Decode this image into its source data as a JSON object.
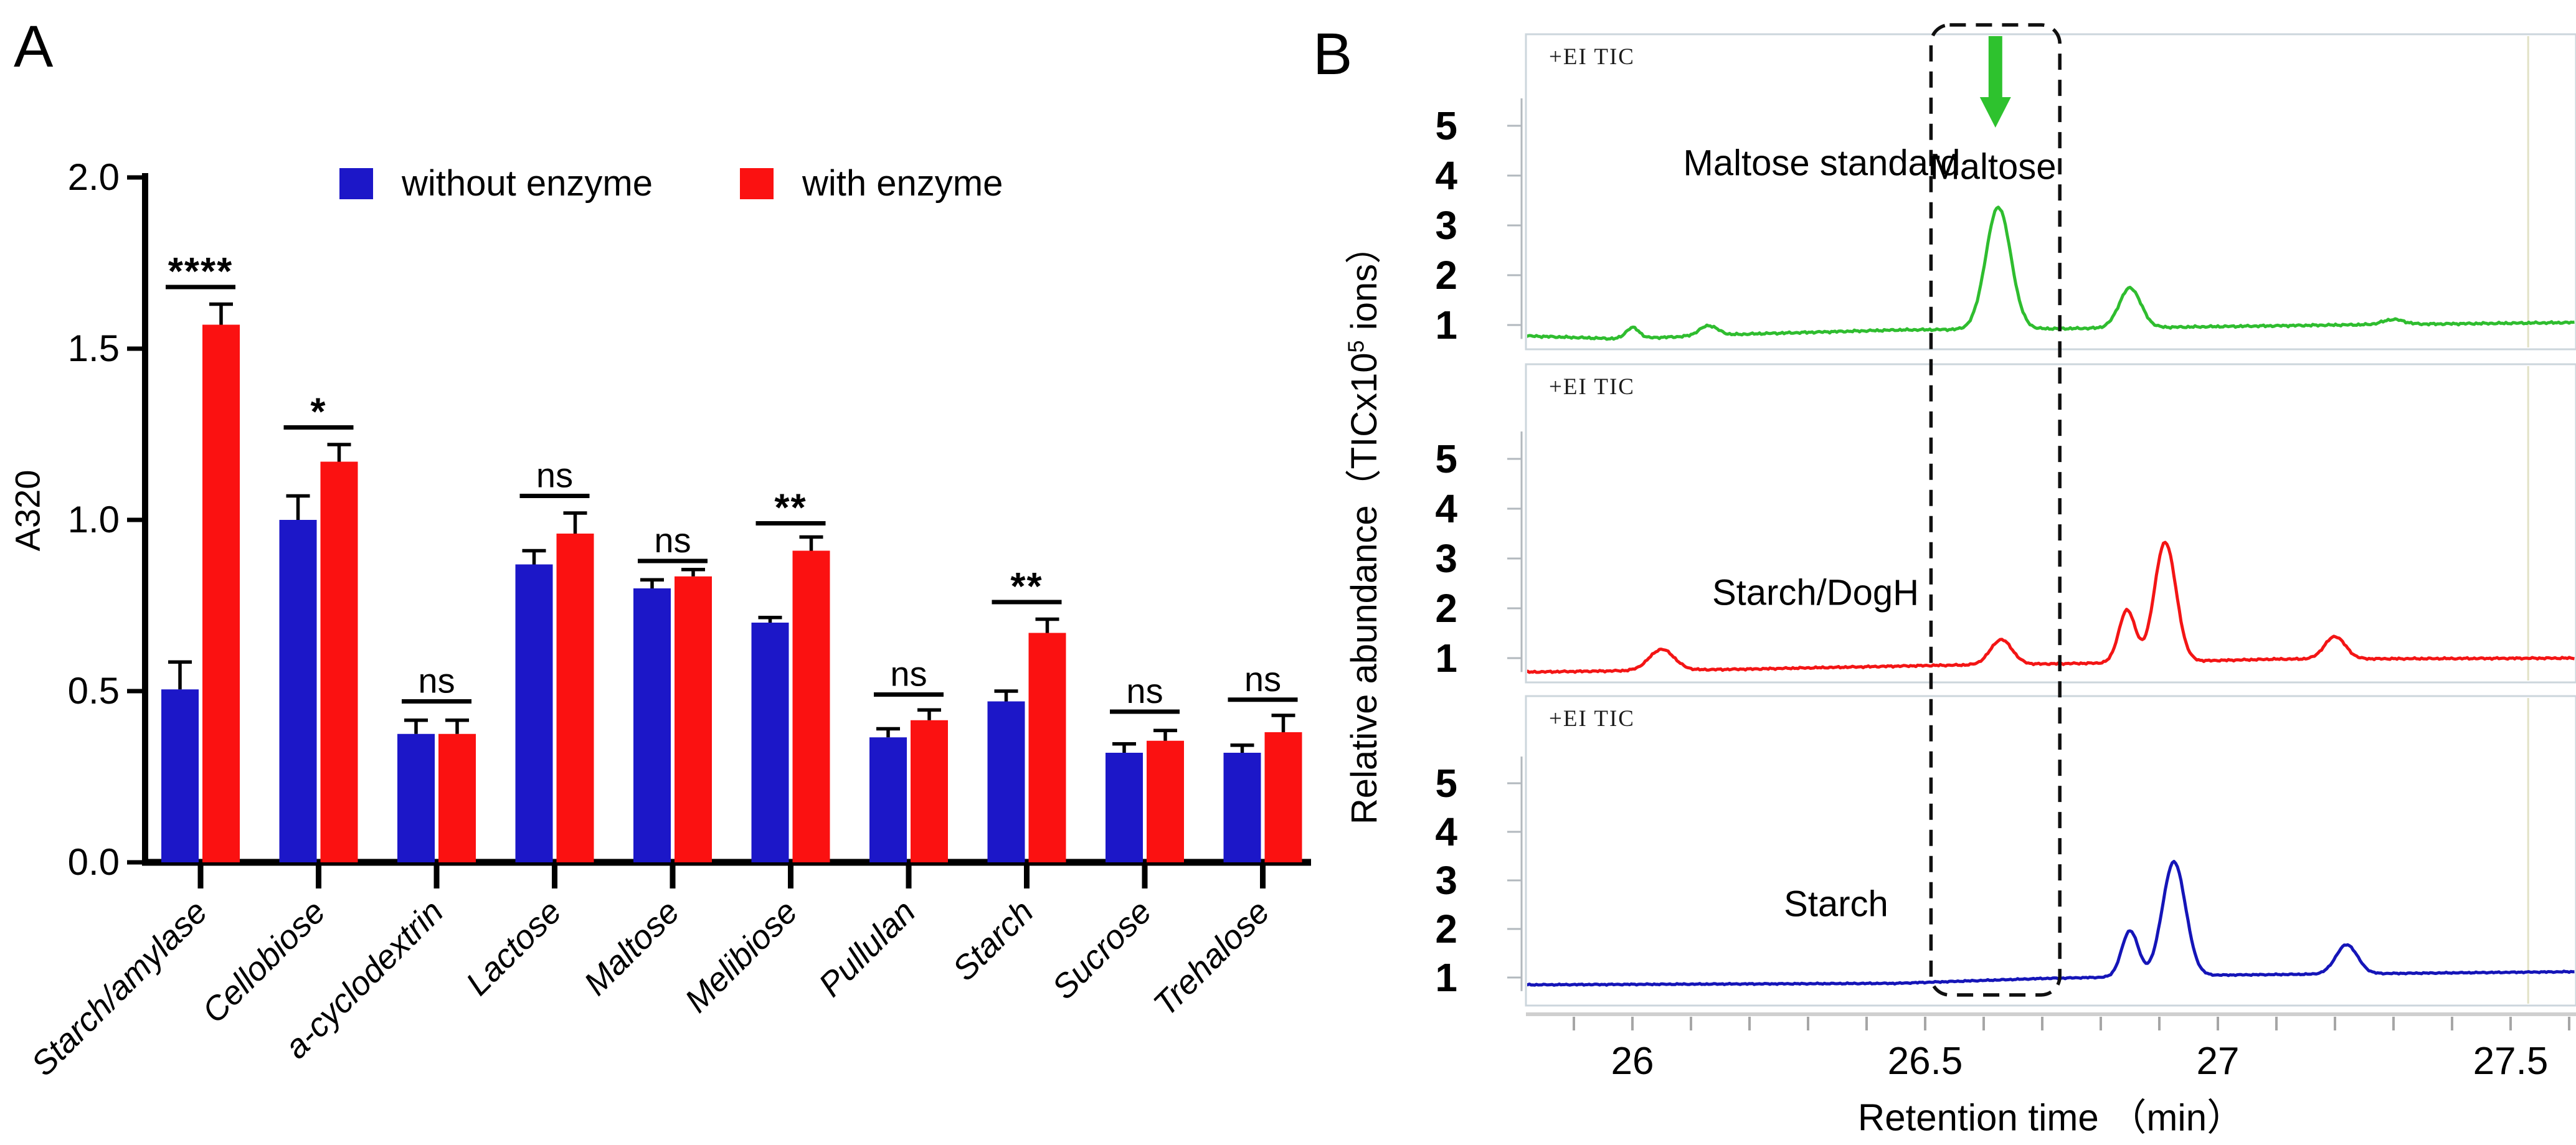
{
  "panels": {
    "a": {
      "letter": "A",
      "ylabel": "A320",
      "ytick_labels": [
        "0.0",
        "0.5",
        "1.0",
        "1.5",
        "2.0"
      ]
    },
    "b": {
      "letter": "B",
      "ei_label": "+EI TIC",
      "ylabel_prefix": "Relative abundance（TICx10",
      "ylabel_sup": "5",
      "ylabel_suffix": " ions）",
      "xlabel": "Retention time （min）",
      "trace_labels": [
        "Maltose standard",
        "Starch/DogH",
        "Starch"
      ],
      "peak_annotation": "Maltose"
    }
  },
  "chart_data": [
    {
      "type": "bar",
      "title": "",
      "ylabel": "A320",
      "ylim": [
        0,
        2
      ],
      "yticks": [
        0,
        0.5,
        1,
        1.5,
        2
      ],
      "categories": [
        "Starch/amylase",
        "Cellobiose",
        "a-cyclodextrin",
        "Lactose",
        "Maltose",
        "Melibiose",
        "Pullulan",
        "Starch",
        "Sucrose",
        "Trehalose"
      ],
      "series": [
        {
          "name": "without enzyme",
          "color": "#1c17c8",
          "values": [
            0.505,
            1.0,
            0.375,
            0.87,
            0.8,
            0.7,
            0.365,
            0.47,
            0.32,
            0.32
          ],
          "errors": [
            0.08,
            0.07,
            0.04,
            0.04,
            0.025,
            0.015,
            0.025,
            0.03,
            0.026,
            0.022
          ]
        },
        {
          "name": "with enzyme",
          "color": "#fb1111",
          "values": [
            1.57,
            1.17,
            0.375,
            0.96,
            0.835,
            0.91,
            0.415,
            0.67,
            0.355,
            0.38
          ],
          "errors": [
            0.06,
            0.05,
            0.04,
            0.06,
            0.02,
            0.04,
            0.03,
            0.04,
            0.03,
            0.049
          ]
        }
      ],
      "significance": {
        "labels": [
          "****",
          "*",
          "ns",
          "ns",
          "ns",
          "**",
          "ns",
          "**",
          "ns",
          "ns"
        ],
        "line_y": [
          1.68,
          1.27,
          0.47,
          1.07,
          0.88,
          0.99,
          0.49,
          0.76,
          0.44,
          0.475
        ]
      }
    },
    {
      "type": "line",
      "xlabel": "Retention time （min）",
      "ylabel": "Relative abundance（TICx10^5 ions）",
      "xlim": [
        25.818,
        27.612
      ],
      "xticks": [
        26,
        26.5,
        27,
        27.5
      ],
      "minor_tick_step": 0.1,
      "yticks": [
        1,
        2,
        3,
        4,
        5
      ],
      "panel_tag": "+EI TIC",
      "marker_line_x": 27.53,
      "dashed_box": {
        "x_from": 26.51,
        "x_to": 26.73,
        "label": "Maltose"
      },
      "arrow_x": 26.62,
      "traces": [
        {
          "name": "Maltose standard",
          "color": "#2fbd2f",
          "noise": 0.024,
          "phase": 1.7,
          "baseline": [
            [
              25.82,
              0.78
            ],
            [
              25.98,
              0.72
            ],
            [
              26.2,
              0.82
            ],
            [
              26.45,
              0.9
            ],
            [
              26.75,
              0.93
            ],
            [
              27.2,
              1.0
            ],
            [
              27.61,
              1.05
            ]
          ],
          "peaks": [
            [
              26.0,
              0.22,
              0.016
            ],
            [
              26.13,
              0.2,
              0.022
            ],
            [
              26.625,
              2.45,
              0.03
            ],
            [
              26.85,
              0.8,
              0.026
            ],
            [
              27.3,
              0.1,
              0.025
            ]
          ]
        },
        {
          "name": "Starch/DogH",
          "color": "#f31515",
          "noise": 0.02,
          "phase": 4.1,
          "baseline": [
            [
              25.82,
              0.72
            ],
            [
              26.2,
              0.78
            ],
            [
              26.5,
              0.85
            ],
            [
              26.8,
              0.9
            ],
            [
              27.1,
              0.98
            ],
            [
              27.61,
              1.0
            ]
          ],
          "peaks": [
            [
              26.05,
              0.42,
              0.03
            ],
            [
              26.63,
              0.5,
              0.026
            ],
            [
              26.845,
              1.05,
              0.02
            ],
            [
              26.91,
              2.4,
              0.026
            ],
            [
              27.2,
              0.45,
              0.025
            ]
          ]
        },
        {
          "name": "Starch",
          "color": "#1515b8",
          "noise": 0.015,
          "phase": 2.3,
          "baseline": [
            [
              25.82,
              0.85
            ],
            [
              26.45,
              0.88
            ],
            [
              26.7,
              0.98
            ],
            [
              27.0,
              1.05
            ],
            [
              27.61,
              1.12
            ]
          ],
          "peaks": [
            [
              26.85,
              0.95,
              0.02
            ],
            [
              26.925,
              2.35,
              0.028
            ],
            [
              27.22,
              0.6,
              0.026
            ]
          ]
        }
      ]
    }
  ]
}
